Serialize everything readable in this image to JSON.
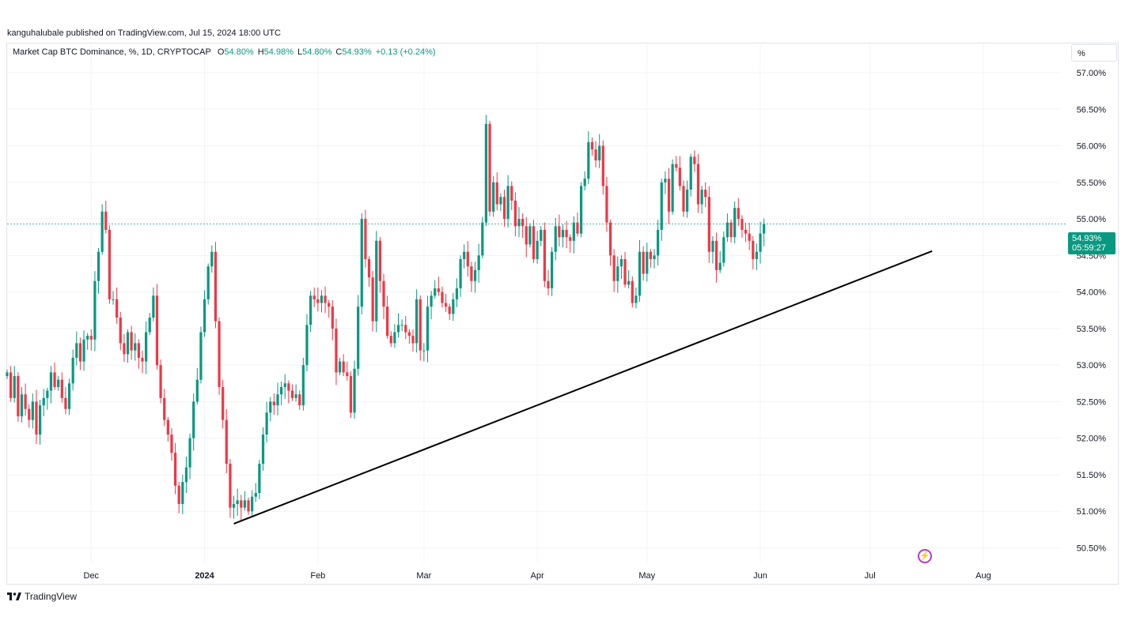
{
  "header": {
    "published": "kanguhalubale published on TradingView.com, Jul 15, 2024 18:00 UTC",
    "symbol": "Market Cap BTC Dominance, %, 1D, CRYPTOCAP",
    "ohlc": {
      "open_label": "O",
      "open": "54.80%",
      "high_label": "H",
      "high": "54.98%",
      "low_label": "L",
      "low": "54.80%",
      "close_label": "C",
      "close": "54.93%",
      "change": "+0.13 (+0.24%)"
    }
  },
  "scale_button": "%",
  "price_tag": {
    "price": "54.93%",
    "countdown": "05:59:27"
  },
  "footer": {
    "brand": "TradingView"
  },
  "colors": {
    "up": "#089981",
    "down": "#f23645",
    "trendline": "#000000",
    "last_price_line": "#089981"
  },
  "icons": {
    "tv_logo": "tradingview-logo-icon",
    "flash": "lightning-icon"
  },
  "chart_data": {
    "type": "candlestick",
    "y_unit": "%",
    "ylim": [
      50.3,
      57.4
    ],
    "xlim": [
      "2023-11-08",
      "2024-08-22"
    ],
    "y_ticks": [
      "57.00%",
      "56.50%",
      "56.00%",
      "55.50%",
      "55.00%",
      "54.50%",
      "54.00%",
      "53.50%",
      "53.00%",
      "52.50%",
      "52.00%",
      "51.50%",
      "51.00%",
      "50.50%"
    ],
    "y_tick_values": [
      57.0,
      56.5,
      56.0,
      55.5,
      55.0,
      54.5,
      54.0,
      53.5,
      53.0,
      52.5,
      52.0,
      51.5,
      51.0,
      50.5
    ],
    "x_ticks": [
      {
        "date": "2023-12-01",
        "label": "Dec"
      },
      {
        "date": "2024-01-01",
        "label": "2024"
      },
      {
        "date": "2024-02-01",
        "label": "Feb"
      },
      {
        "date": "2024-03-01",
        "label": "Mar"
      },
      {
        "date": "2024-04-01",
        "label": "Apr"
      },
      {
        "date": "2024-05-01",
        "label": "May"
      },
      {
        "date": "2024-06-01",
        "label": "Jun"
      },
      {
        "date": "2024-07-01",
        "label": "Jul"
      },
      {
        "date": "2024-08-01",
        "label": "Aug"
      }
    ],
    "last_price": 54.93,
    "trendline": [
      {
        "date": "2024-01-09",
        "value": 50.83
      },
      {
        "date": "2024-07-18",
        "value": 54.56
      }
    ],
    "start_date": "2023-11-08",
    "closes": [
      52.9,
      52.55,
      52.85,
      52.3,
      52.6,
      52.4,
      52.25,
      52.5,
      52.05,
      52.45,
      52.55,
      52.65,
      52.9,
      52.7,
      52.8,
      52.55,
      52.4,
      52.75,
      53.1,
      53.3,
      53.05,
      53.35,
      53.4,
      53.35,
      54.15,
      54.55,
      55.1,
      54.85,
      53.9,
      53.9,
      53.65,
      53.3,
      53.15,
      53.45,
      53.2,
      53.3,
      53.1,
      53.05,
      53.45,
      53.65,
      53.95,
      53.0,
      52.55,
      52.25,
      52.05,
      51.8,
      51.35,
      51.1,
      51.4,
      51.6,
      52.0,
      52.5,
      52.8,
      53.45,
      53.9,
      54.35,
      54.55,
      53.6,
      52.7,
      52.25,
      51.65,
      51.05,
      51.1,
      51.15,
      51.05,
      51.15,
      51.0,
      51.2,
      51.25,
      51.65,
      52.05,
      52.35,
      52.5,
      52.45,
      52.6,
      52.7,
      52.75,
      52.65,
      52.55,
      52.6,
      52.45,
      53.0,
      53.55,
      53.95,
      53.9,
      53.85,
      53.95,
      53.85,
      53.8,
      53.5,
      52.9,
      53.05,
      52.9,
      52.85,
      52.35,
      52.95,
      53.8,
      55.0,
      54.45,
      54.2,
      53.6,
      54.7,
      54.15,
      53.8,
      53.4,
      53.3,
      53.45,
      53.55,
      53.55,
      53.45,
      53.4,
      53.3,
      53.9,
      53.2,
      53.2,
      53.8,
      53.95,
      54.05,
      54.0,
      53.85,
      53.8,
      53.7,
      53.9,
      54.05,
      54.45,
      54.55,
      54.35,
      54.15,
      54.3,
      54.5,
      54.95,
      56.3,
      55.1,
      55.5,
      55.2,
      55.3,
      55.0,
      55.45,
      55.25,
      54.9,
      55.0,
      54.9,
      54.65,
      54.9,
      54.45,
      54.7,
      54.85,
      54.15,
      54.05,
      54.55,
      54.9,
      54.75,
      54.85,
      54.75,
      54.7,
      54.95,
      54.8,
      55.45,
      55.55,
      56.05,
      55.95,
      55.8,
      56.0,
      55.45,
      54.95,
      54.5,
      54.15,
      54.35,
      54.45,
      54.1,
      54.15,
      53.85,
      53.95,
      54.55,
      54.25,
      54.55,
      54.45,
      54.5,
      54.85,
      55.5,
      55.55,
      55.1,
      55.75,
      55.7,
      55.45,
      55.1,
      55.4,
      55.85,
      55.75,
      55.2,
      55.4,
      55.3,
      54.55,
      54.7,
      54.3,
      54.4,
      54.75,
      54.95,
      54.75,
      55.15,
      55.0,
      54.85,
      54.8,
      54.7,
      54.45,
      54.55,
      54.8,
      54.93
    ]
  }
}
